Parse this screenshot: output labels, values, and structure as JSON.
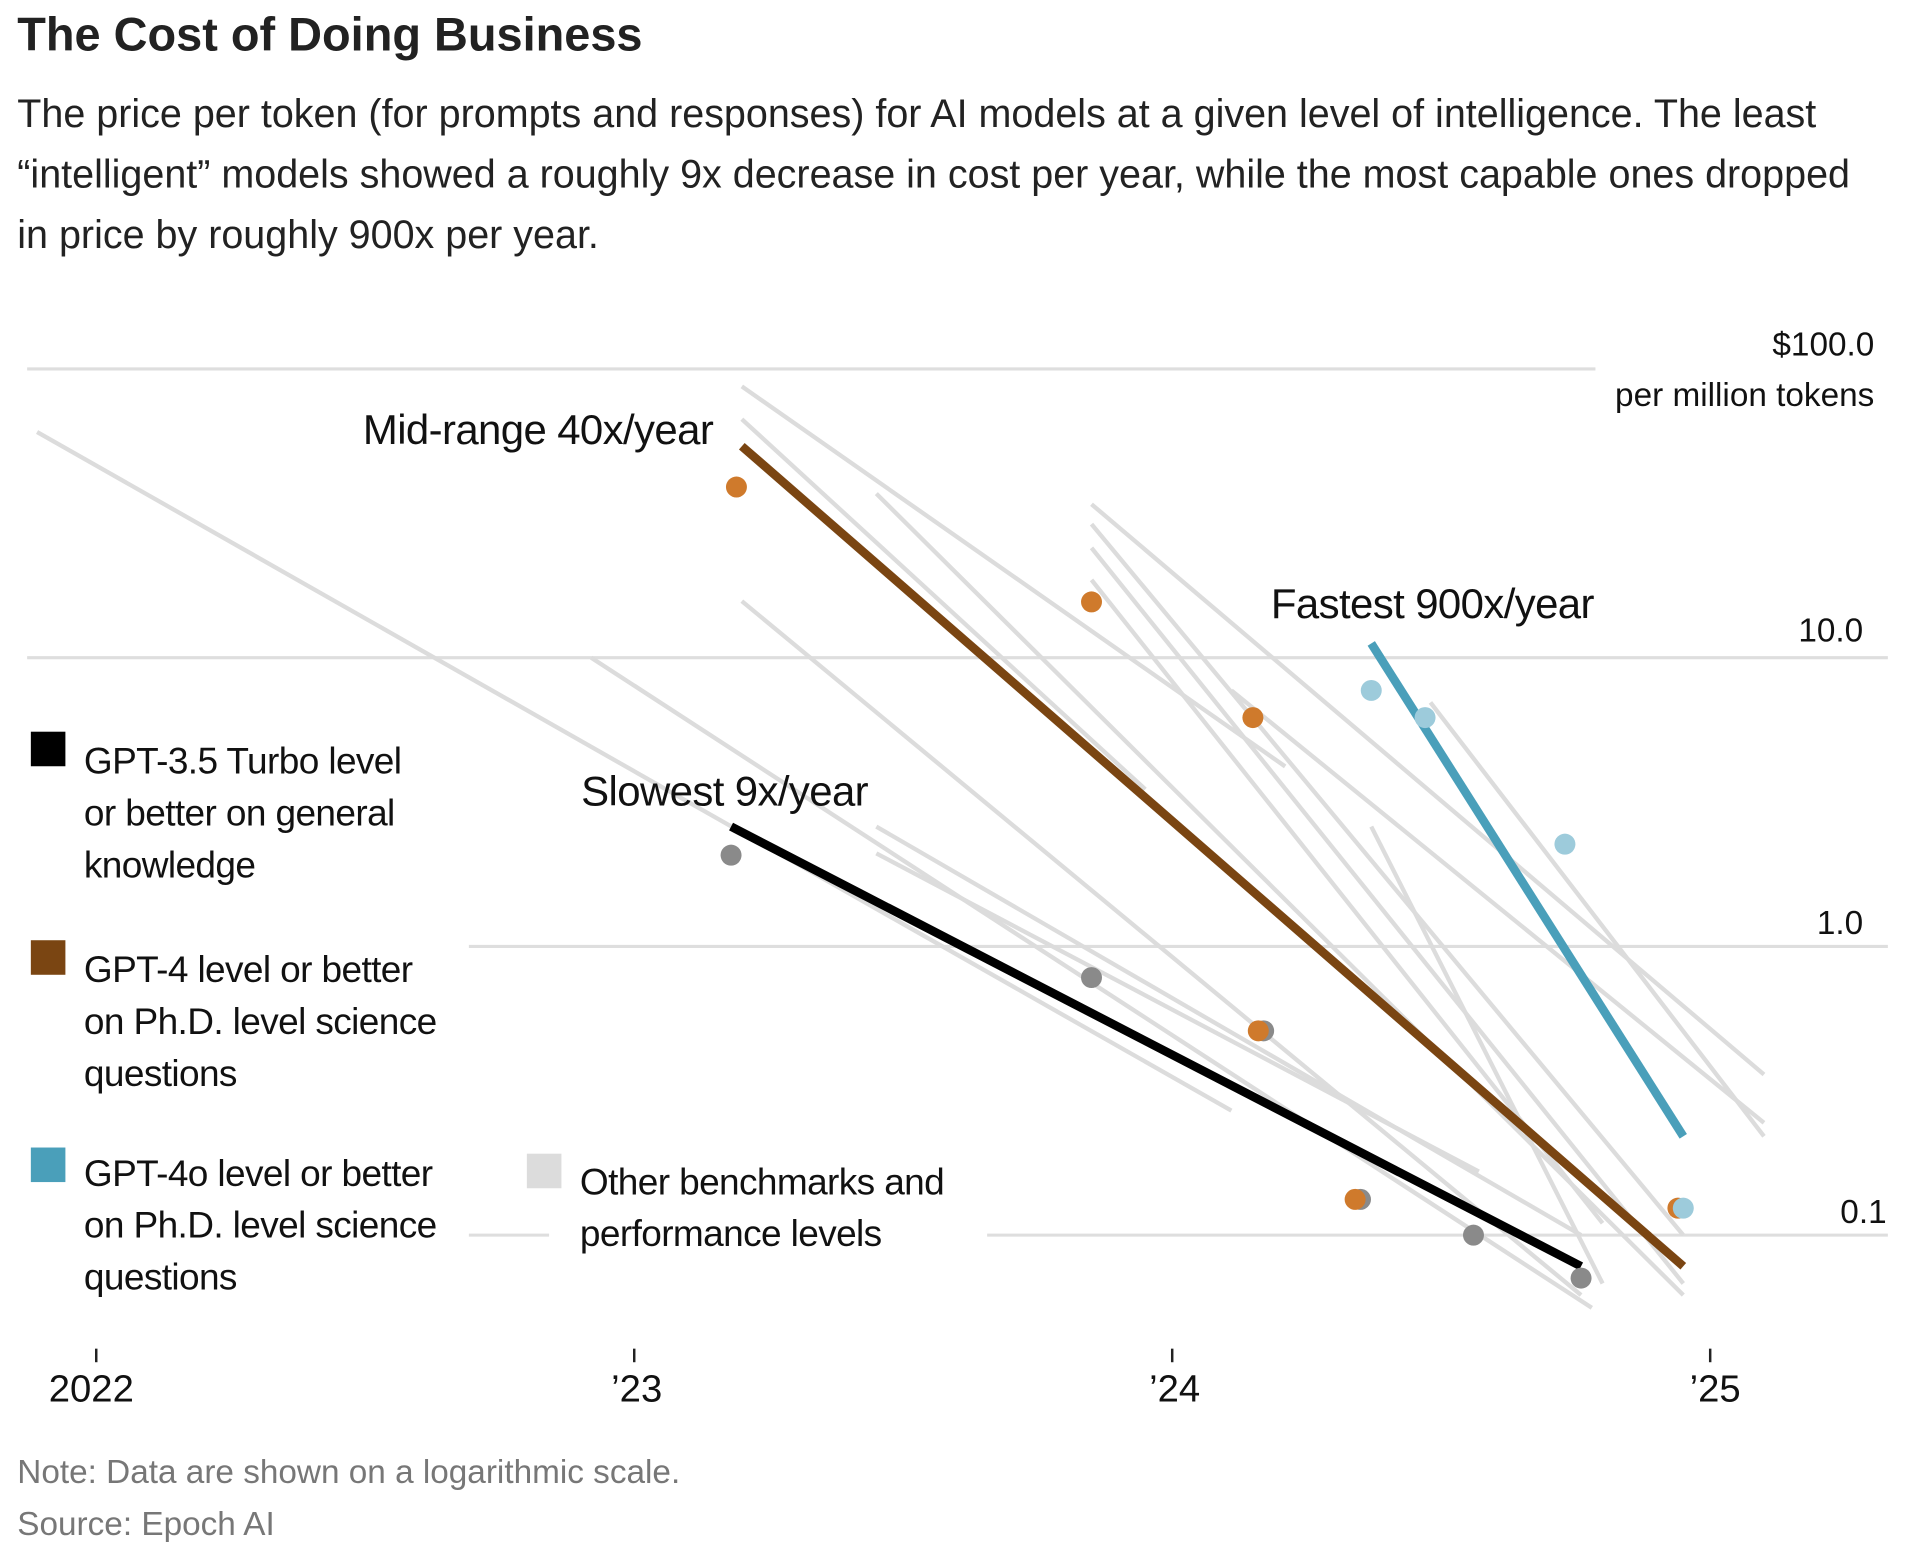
{
  "title": "The Cost of Doing Business",
  "subtitle": "The price per token (for prompts and responses) for AI models at a given level of intelligence. The least “intelligent” models showed a roughly 9x decrease in cost per year, while the most capable ones dropped in price by roughly 900x per year.",
  "note": "Note: Data are shown on a logarithmic scale.",
  "source": "Source: Epoch AI",
  "chart_data": {
    "type": "line",
    "title": "The Cost of Doing Business",
    "ylabel": "per million tokens",
    "yscale": "log",
    "ylim": [
      0.04,
      100
    ],
    "xlim": [
      2021.85,
      2025.2
    ],
    "y_ticks": [
      {
        "value": 100,
        "label": "$100.0"
      },
      {
        "value": 10,
        "label": "10.0"
      },
      {
        "value": 1,
        "label": "1.0"
      },
      {
        "value": 0.1,
        "label": "0.1"
      }
    ],
    "y_unit_label": "per million tokens",
    "x_ticks": [
      {
        "value": 2022,
        "label": "2022"
      },
      {
        "value": 2023,
        "label": "’23"
      },
      {
        "value": 2024,
        "label": "’24"
      },
      {
        "value": 2025,
        "label": "’25"
      }
    ],
    "grid": true,
    "colors": {
      "slowest": "#000000",
      "midrange": "#7a4512",
      "fastest": "#4a9fba",
      "other": "#dcdcdc",
      "dot_gray": "#8a8a8a",
      "dot_orange": "#cf7a2c",
      "dot_blue": "#9dcbdb"
    },
    "trend_lines": [
      {
        "name": "Slowest 9x/year",
        "color": "#000000",
        "points": [
          [
            2023.18,
            2.6
          ],
          [
            2024.76,
            0.078
          ]
        ]
      },
      {
        "name": "Mid-range 40x/year",
        "color": "#7a4512",
        "points": [
          [
            2023.2,
            54
          ],
          [
            2024.95,
            0.078
          ]
        ]
      },
      {
        "name": "Fastest 900x/year",
        "color": "#4a9fba",
        "points": [
          [
            2024.37,
            11.2
          ],
          [
            2024.95,
            0.22
          ]
        ]
      }
    ],
    "dots": [
      {
        "group": "gpt35",
        "color": "#8a8a8a",
        "points": [
          [
            2023.18,
            2.07
          ],
          [
            2023.85,
            0.78
          ],
          [
            2024.17,
            0.51
          ],
          [
            2024.35,
            0.133
          ],
          [
            2024.56,
            0.1
          ],
          [
            2024.76,
            0.071
          ]
        ]
      },
      {
        "group": "gpt4",
        "color": "#cf7a2c",
        "points": [
          [
            2023.19,
            39
          ],
          [
            2023.85,
            15.6
          ],
          [
            2024.15,
            6.2
          ],
          [
            2024.16,
            0.51
          ],
          [
            2024.34,
            0.133
          ],
          [
            2024.94,
            0.124
          ]
        ]
      },
      {
        "group": "gpt4o",
        "color": "#9dcbdb",
        "points": [
          [
            2024.37,
            7.7
          ],
          [
            2024.47,
            6.2
          ],
          [
            2024.73,
            2.26
          ],
          [
            2024.95,
            0.124
          ]
        ]
      }
    ],
    "other_lines": [
      [
        [
          2021.89,
          60.5
        ],
        [
          2024.11,
          0.27
        ]
      ],
      [
        [
          2022.92,
          10
        ],
        [
          2024.78,
          0.056
        ]
      ],
      [
        [
          2023.2,
          87
        ],
        [
          2024.21,
          4.2
        ]
      ],
      [
        [
          2023.2,
          15.7
        ],
        [
          2024.76,
          0.062
        ]
      ],
      [
        [
          2023.45,
          37
        ],
        [
          2024.95,
          0.062
        ]
      ],
      [
        [
          2023.45,
          2.6
        ],
        [
          2024.76,
          0.1
        ]
      ],
      [
        [
          2023.85,
          34
        ],
        [
          2025.1,
          0.36
        ]
      ],
      [
        [
          2023.85,
          29
        ],
        [
          2024.95,
          0.1
        ]
      ],
      [
        [
          2023.85,
          24
        ],
        [
          2024.95,
          0.068
        ]
      ],
      [
        [
          2023.85,
          18.6
        ],
        [
          2024.8,
          0.11
        ]
      ],
      [
        [
          2024.11,
          7.7
        ],
        [
          2025.1,
          0.245
        ]
      ],
      [
        [
          2024.37,
          2.6
        ],
        [
          2024.8,
          0.068
        ]
      ],
      [
        [
          2024.48,
          7.0
        ],
        [
          2025.1,
          0.22
        ]
      ],
      [
        [
          2023.2,
          67
        ],
        [
          2023.95,
          3.5
        ]
      ],
      [
        [
          2023.45,
          2.1
        ],
        [
          2024.57,
          0.166
        ]
      ]
    ],
    "annotations": [
      "Mid-range 40x/year",
      "Slowest 9x/year",
      "Fastest 900x/year"
    ],
    "legend": [
      {
        "label": "GPT-3.5 Turbo level or better on general knowledge",
        "color": "#000000"
      },
      {
        "label": "GPT-4 level or better on Ph.D. level science questions",
        "color": "#7a4512"
      },
      {
        "label": "GPT-4o level or better on Ph.D. level science questions",
        "color": "#4a9fba"
      },
      {
        "label": "Other benchmarks and performance levels",
        "color": "#dcdcdc"
      }
    ],
    "legend_placement": "left"
  }
}
